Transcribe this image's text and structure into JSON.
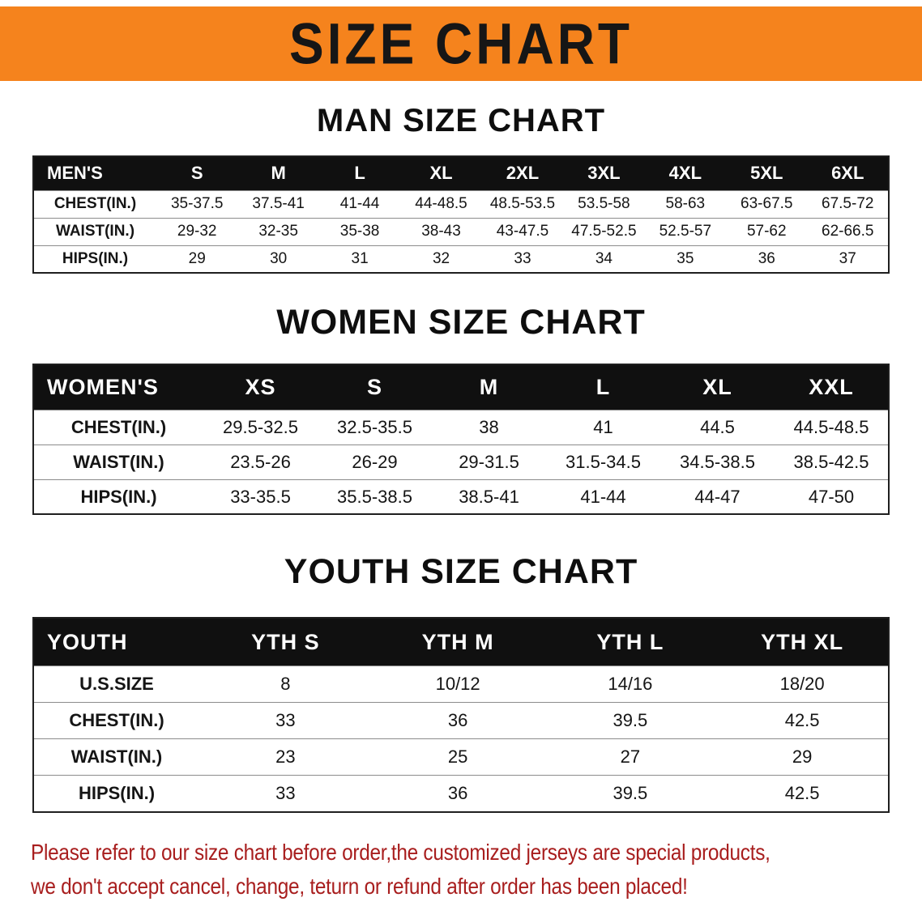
{
  "colors": {
    "banner": "#f5831d",
    "header": "#101010",
    "shade": "#d8d8d8",
    "disclaimer": "#a81e1e"
  },
  "banner": {
    "title": "SIZE CHART"
  },
  "sections": {
    "men": {
      "heading": "MAN SIZE CHART",
      "header": [
        "MEN'S",
        "S",
        "M",
        "L",
        "XL",
        "2XL",
        "3XL",
        "4XL",
        "5XL",
        "6XL"
      ],
      "rows": [
        [
          "CHEST(IN.)",
          "35-37.5",
          "37.5-41",
          "41-44",
          "44-48.5",
          "48.5-53.5",
          "53.5-58",
          "58-63",
          "63-67.5",
          "67.5-72"
        ],
        [
          "WAIST(IN.)",
          "29-32",
          "32-35",
          "35-38",
          "38-43",
          "43-47.5",
          "47.5-52.5",
          "52.5-57",
          "57-62",
          "62-66.5"
        ],
        [
          "HIPS(IN.)",
          "29",
          "30",
          "31",
          "32",
          "33",
          "34",
          "35",
          "36",
          "37"
        ]
      ]
    },
    "women": {
      "heading": "WOMEN SIZE CHART",
      "header": [
        "WOMEN'S",
        "XS",
        "S",
        "M",
        "L",
        "XL",
        "XXL"
      ],
      "rows": [
        [
          "CHEST(IN.)",
          "29.5-32.5",
          "32.5-35.5",
          "38",
          "41",
          "44.5",
          "44.5-48.5"
        ],
        [
          "WAIST(IN.)",
          "23.5-26",
          "26-29",
          "29-31.5",
          "31.5-34.5",
          "34.5-38.5",
          "38.5-42.5"
        ],
        [
          "HIPS(IN.)",
          "33-35.5",
          "35.5-38.5",
          "38.5-41",
          "41-44",
          "44-47",
          "47-50"
        ]
      ]
    },
    "youth": {
      "heading": "YOUTH SIZE CHART",
      "header": [
        "YOUTH",
        "YTH S",
        "YTH M",
        "YTH L",
        "YTH XL"
      ],
      "rows": [
        [
          "U.S.SIZE",
          "8",
          "10/12",
          "14/16",
          "18/20"
        ],
        [
          "CHEST(IN.)",
          "33",
          "36",
          "39.5",
          "42.5"
        ],
        [
          "WAIST(IN.)",
          "23",
          "25",
          "27",
          "29"
        ],
        [
          "HIPS(IN.)",
          "33",
          "36",
          "39.5",
          "42.5"
        ]
      ]
    }
  },
  "disclaimer": {
    "line1": "Please refer to our size chart before order,the customized jerseys are special products,",
    "line2": "we don't accept cancel, change, teturn or refund after order has been placed!"
  }
}
